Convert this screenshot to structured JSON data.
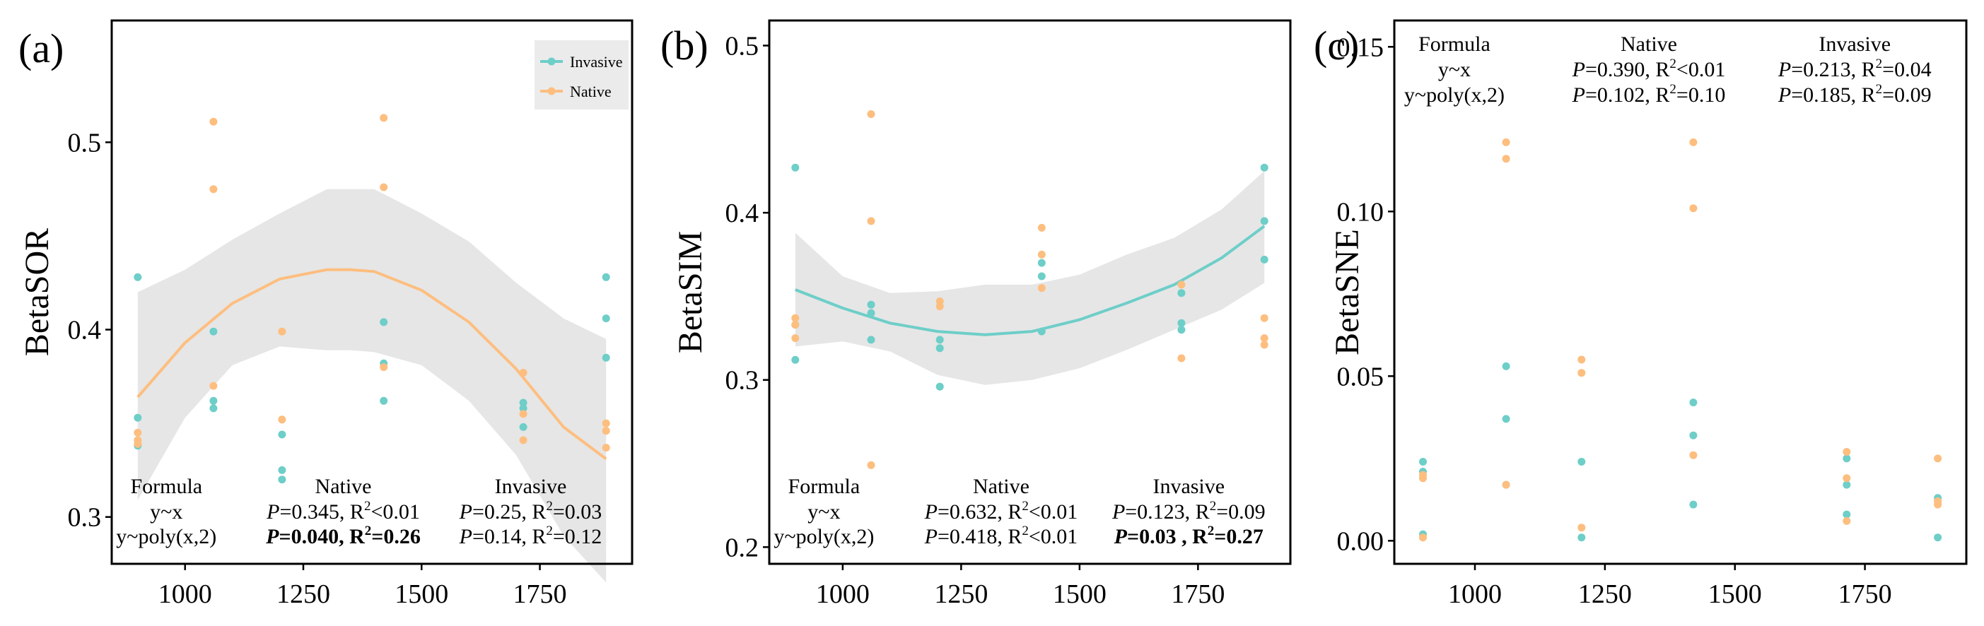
{
  "colors": {
    "invasive": "#6ECEC8",
    "native": "#FDBE7F",
    "band": "#E6E6E6"
  },
  "chart_data": [
    {
      "type": "scatter",
      "panel_label": "(a)",
      "ylabel": "BetaSOR",
      "xlabel": "",
      "xlim": [
        845,
        1945
      ],
      "ylim": [
        0.275,
        0.565
      ],
      "xticks": [
        1000,
        1250,
        1500,
        1750
      ],
      "yticks": [
        0.3,
        0.4,
        0.5
      ],
      "ytick_labels": [
        "0.3",
        "0.4",
        "0.5"
      ],
      "legend": {
        "position": "top-right",
        "entries": [
          "Invasive",
          "Native"
        ]
      },
      "series": [
        {
          "name": "Invasive",
          "color_key": "invasive",
          "x": [
            900,
            900,
            900,
            1060,
            1060,
            1060,
            1205,
            1205,
            1205,
            1420,
            1420,
            1420,
            1715,
            1715,
            1715,
            1890,
            1890,
            1890
          ],
          "y": [
            0.428,
            0.353,
            0.338,
            0.399,
            0.362,
            0.358,
            0.344,
            0.325,
            0.32,
            0.404,
            0.382,
            0.362,
            0.361,
            0.358,
            0.348,
            0.428,
            0.406,
            0.385
          ]
        },
        {
          "name": "Native",
          "color_key": "native",
          "x": [
            900,
            900,
            900,
            1060,
            1060,
            1060,
            1205,
            1205,
            1420,
            1420,
            1420,
            1715,
            1715,
            1715,
            1890,
            1890,
            1890
          ],
          "y": [
            0.345,
            0.341,
            0.339,
            0.511,
            0.475,
            0.37,
            0.399,
            0.352,
            0.513,
            0.476,
            0.38,
            0.377,
            0.355,
            0.341,
            0.35,
            0.346,
            0.337
          ]
        }
      ],
      "fit": {
        "series": "Native",
        "color_key": "native",
        "x": [
          900,
          1000,
          1100,
          1200,
          1300,
          1350,
          1400,
          1500,
          1600,
          1700,
          1800,
          1890
        ],
        "y": [
          0.364,
          0.393,
          0.414,
          0.427,
          0.432,
          0.432,
          0.431,
          0.421,
          0.404,
          0.379,
          0.348,
          0.331
        ],
        "lo": [
          0.309,
          0.353,
          0.381,
          0.391,
          0.389,
          0.389,
          0.388,
          0.381,
          0.362,
          0.333,
          0.29,
          0.265
        ],
        "hi": [
          0.42,
          0.432,
          0.448,
          0.462,
          0.475,
          0.475,
          0.475,
          0.462,
          0.447,
          0.425,
          0.406,
          0.395
        ]
      },
      "stats_position": "bottom",
      "stats": {
        "headers": [
          "Formula",
          "Native",
          "Invasive"
        ],
        "rows": [
          {
            "formula": "y~x",
            "native": {
              "p": "=0.345, R",
              "sup": "2",
              "r": "<0.01",
              "bold": false
            },
            "invasive": {
              "p": "=0.25, R",
              "sup": "2",
              "r": "=0.03",
              "bold": false
            }
          },
          {
            "formula": "y~poly(x,2)",
            "native": {
              "p": "=0.040, R",
              "sup": "2",
              "r": "=0.26",
              "bold": true
            },
            "invasive": {
              "p": "=0.14, R",
              "sup": "2",
              "r": "=0.12",
              "bold": false
            }
          }
        ]
      }
    },
    {
      "type": "scatter",
      "panel_label": "(b)",
      "ylabel": "BetaSIM",
      "xlabel": "",
      "xlim": [
        845,
        1945
      ],
      "ylim": [
        0.19,
        0.515
      ],
      "xticks": [
        1000,
        1250,
        1500,
        1750
      ],
      "yticks": [
        0.2,
        0.3,
        0.4,
        0.5
      ],
      "ytick_labels": [
        "0.2",
        "0.3",
        "0.4",
        "0.5"
      ],
      "series": [
        {
          "name": "Invasive",
          "color_key": "invasive",
          "x": [
            900,
            900,
            900,
            1060,
            1060,
            1060,
            1205,
            1205,
            1205,
            1420,
            1420,
            1420,
            1715,
            1715,
            1715,
            1890,
            1890,
            1890
          ],
          "y": [
            0.427,
            0.333,
            0.312,
            0.345,
            0.34,
            0.324,
            0.324,
            0.319,
            0.296,
            0.37,
            0.362,
            0.329,
            0.352,
            0.334,
            0.33,
            0.427,
            0.395,
            0.372
          ]
        },
        {
          "name": "Native",
          "color_key": "native",
          "x": [
            900,
            900,
            900,
            1060,
            1060,
            1205,
            1205,
            1420,
            1420,
            1420,
            1715,
            1715,
            1890,
            1890,
            1890
          ],
          "y": [
            0.337,
            0.333,
            0.325,
            0.459,
            0.395,
            0.347,
            0.344,
            0.391,
            0.375,
            0.355,
            0.357,
            0.313,
            0.337,
            0.325,
            0.321
          ]
        }
      ],
      "extra_points": [
        {
          "series": "Native",
          "x": 1060,
          "y": 0.249
        }
      ],
      "fit": {
        "series": "Invasive",
        "color_key": "invasive",
        "x": [
          900,
          1000,
          1100,
          1200,
          1300,
          1400,
          1500,
          1600,
          1700,
          1800,
          1890
        ],
        "y": [
          0.354,
          0.343,
          0.334,
          0.329,
          0.327,
          0.329,
          0.336,
          0.346,
          0.357,
          0.373,
          0.392
        ],
        "lo": [
          0.32,
          0.323,
          0.317,
          0.303,
          0.297,
          0.3,
          0.307,
          0.318,
          0.33,
          0.342,
          0.358
        ],
        "hi": [
          0.388,
          0.362,
          0.352,
          0.353,
          0.357,
          0.357,
          0.363,
          0.375,
          0.385,
          0.402,
          0.425
        ]
      },
      "stats_position": "bottom",
      "stats": {
        "headers": [
          "Formula",
          "Native",
          "Invasive"
        ],
        "rows": [
          {
            "formula": "y~x",
            "native": {
              "p": "=0.632, R",
              "sup": "2",
              "r": "<0.01",
              "bold": false
            },
            "invasive": {
              "p": "=0.123, R",
              "sup": "2",
              "r": "=0.09",
              "bold": false
            }
          },
          {
            "formula": "y~poly(x,2)",
            "native": {
              "p": "=0.418, R",
              "sup": "2",
              "r": "<0.01",
              "bold": false
            },
            "invasive": {
              "p": "=0.03  , R",
              "sup": "2",
              "r": "=0.27",
              "bold": true
            }
          }
        ]
      }
    },
    {
      "type": "scatter",
      "panel_label": "(c)",
      "ylabel": "BetaSNE",
      "xlabel": "",
      "xlim": [
        845,
        1945
      ],
      "ylim": [
        -0.007,
        0.158
      ],
      "xticks": [
        1000,
        1250,
        1500,
        1750
      ],
      "yticks": [
        0.0,
        0.05,
        0.1,
        0.15
      ],
      "ytick_labels": [
        "0.00",
        "0.05",
        "0.10",
        "0.15"
      ],
      "series": [
        {
          "name": "Invasive",
          "color_key": "invasive",
          "x": [
            900,
            900,
            900,
            1060,
            1060,
            1060,
            1205,
            1205,
            1420,
            1420,
            1420,
            1715,
            1715,
            1715,
            1890,
            1890
          ],
          "y": [
            0.024,
            0.021,
            0.002,
            0.053,
            0.037,
            0.017,
            0.024,
            0.001,
            0.042,
            0.032,
            0.011,
            0.025,
            0.017,
            0.008,
            0.013,
            0.001
          ]
        },
        {
          "name": "Native",
          "color_key": "native",
          "x": [
            900,
            900,
            900,
            1060,
            1060,
            1060,
            1205,
            1205,
            1205,
            1420,
            1420,
            1420,
            1715,
            1715,
            1715,
            1890,
            1890,
            1890
          ],
          "y": [
            0.02,
            0.019,
            0.001,
            0.121,
            0.116,
            0.017,
            0.055,
            0.051,
            0.004,
            0.121,
            0.101,
            0.026,
            0.027,
            0.019,
            0.006,
            0.025,
            0.012,
            0.011
          ]
        }
      ],
      "stats_position": "top",
      "stats": {
        "headers": [
          "Formula",
          "Native",
          "Invasive"
        ],
        "rows": [
          {
            "formula": "y~x",
            "native": {
              "p": "=0.390, R",
              "sup": "2",
              "r": "<0.01",
              "bold": false
            },
            "invasive": {
              "p": "=0.213, R",
              "sup": "2",
              "r": "=0.04",
              "bold": false
            }
          },
          {
            "formula": "y~poly(x,2)",
            "native": {
              "p": "=0.102, R",
              "sup": "2",
              "r": "=0.10",
              "bold": false
            },
            "invasive": {
              "p": "=0.185, R",
              "sup": "2",
              "r": "=0.09",
              "bold": false
            }
          }
        ]
      }
    }
  ]
}
